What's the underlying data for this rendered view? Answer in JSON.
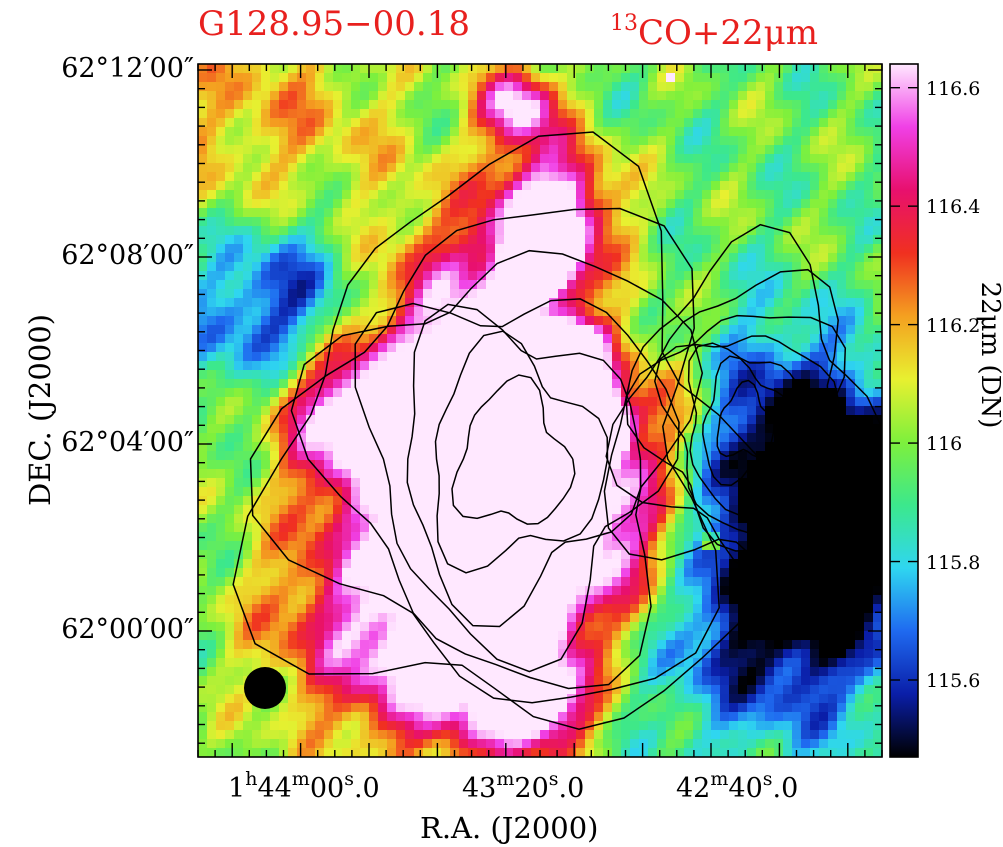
{
  "chart_data": {
    "type": "heatmap",
    "title_left": "G128.95−00.18",
    "title_right_sup": "13",
    "title_right": "CO+22μm",
    "title_color": "#e8201e",
    "xlabel": "R.A. (J2000)",
    "ylabel": "DEC. (J2000)",
    "colorbar_label": "22μm (DN)",
    "colorbar_range": [
      115.47,
      116.64
    ],
    "colorbar_ticks": [
      "115.6",
      "115.8",
      "116",
      "116.2",
      "116.4",
      "116.6"
    ],
    "colorbar_tick_values": [
      115.6,
      115.8,
      116.0,
      116.2,
      116.4,
      116.6
    ],
    "dec_ticks": [
      "62°12′00″",
      "62°08′00″",
      "62°04′00″",
      "62°00′00″"
    ],
    "ra_ticks": [
      {
        "hour": "1",
        "hour_sup": "h",
        "min": "44",
        "min_sup": "m",
        "sec": "00",
        "sec_sup": "s",
        "frac": ".0"
      },
      {
        "hour": "",
        "hour_sup": "",
        "min": "43",
        "min_sup": "m",
        "sec": "20",
        "sec_sup": "s",
        "frac": ".0"
      },
      {
        "hour": "",
        "hour_sup": "",
        "min": "42",
        "min_sup": "m",
        "sec": "40",
        "sec_sup": "s",
        "frac": ".0"
      }
    ],
    "colormap": [
      "#000000",
      "#0a1ea8",
      "#1f6af0",
      "#2fd6f0",
      "#3ce88c",
      "#7ef03c",
      "#e8f030",
      "#f4a020",
      "#f03020",
      "#e8106e",
      "#f040e6",
      "#ffe8ff"
    ],
    "contour_levels": 7,
    "beam": "filled-circle",
    "grid": false
  }
}
